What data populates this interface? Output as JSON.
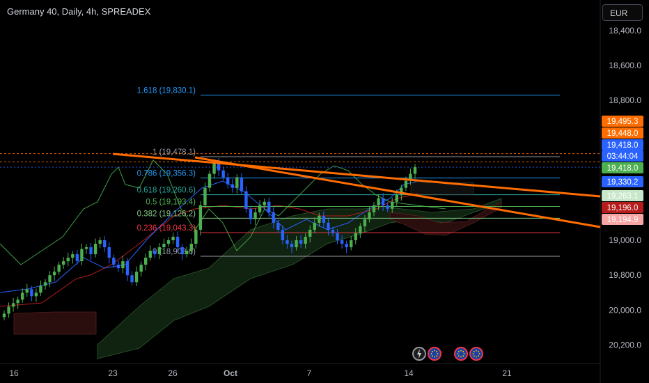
{
  "header": {
    "title": "Germany 40, Daily, 4h, SPREADEX",
    "currency": "EUR"
  },
  "y_ticks": [
    "20,200.0",
    "20,000.0",
    "19,800.0",
    "19,000.0",
    "18,800.0",
    "18,600.0",
    "18,400.0"
  ],
  "x_ticks": [
    "16",
    "23",
    "26",
    "Oct",
    "7",
    "14",
    "21"
  ],
  "fib_levels": [
    {
      "label": "1.618 (19,830.1)",
      "color": "#2196f3"
    },
    {
      "label": "1 (19,478.1)",
      "color": "#9598a1"
    },
    {
      "label": "0.786 (19,356.3)",
      "color": "#2196f3"
    },
    {
      "label": "0.618 (19,260.6)",
      "color": "#26a69a"
    },
    {
      "label": "0.5 (19,193.4)",
      "color": "#4caf50"
    },
    {
      "label": "0.382 (19,126.2)",
      "color": "#81c784"
    },
    {
      "label": "0.236 (19,043.3)",
      "color": "#f23645"
    },
    {
      "label": "0 (18,908.6)",
      "color": "#9598a1"
    }
  ],
  "price_tags": [
    {
      "label": "19,495.3",
      "color": "#ff6d00",
      "text_color": "#ffffff"
    },
    {
      "label": "19,448.0",
      "color": "#ff6d00",
      "text_color": "#ffffff"
    },
    {
      "label": "19,418.0",
      "color": "#2962ff",
      "text_color": "#ffffff"
    },
    {
      "label": "03:44:04",
      "color": "#2962ff",
      "text_color": "#ffffff"
    },
    {
      "label": "19,418.0",
      "color": "#4caf50",
      "text_color": "#ffffff"
    },
    {
      "label": "19,330.2",
      "color": "#2962ff",
      "text_color": "#ffffff"
    },
    {
      "label": "19,263.1",
      "color": "#c8e6c9",
      "text_color": "#000000"
    },
    {
      "label": "19,196.0",
      "color": "#b71c1c",
      "text_color": "#ffffff"
    },
    {
      "label": "19,194.9",
      "color": "#f7a5a5",
      "text_color": "#000000"
    }
  ],
  "colors": {
    "up": "#4caf50",
    "down": "#2962ff",
    "trendline": "#ff6d00",
    "cloud_bull": "#0f2310",
    "cloud_bear": "#2a0d0d",
    "kijun": "#b71c1c",
    "tenkan": "#2962ff",
    "chikou": "#43a047"
  },
  "chart_data": {
    "type": "candlestick",
    "title": "Germany 40, Daily, 4h, SPREADEX",
    "ylim": [
      18330,
      20260
    ],
    "y_ticks": [
      18400,
      18600,
      18800,
      19000,
      19800,
      20000,
      20200
    ],
    "x_tick_labels": [
      "16",
      "23",
      "26",
      "Oct",
      "7",
      "14",
      "21"
    ],
    "fibonacci": [
      {
        "ratio": 1.618,
        "price": 19830.1
      },
      {
        "ratio": 1,
        "price": 19478.1
      },
      {
        "ratio": 0.786,
        "price": 19356.3
      },
      {
        "ratio": 0.618,
        "price": 19260.6
      },
      {
        "ratio": 0.5,
        "price": 19193.4
      },
      {
        "ratio": 0.382,
        "price": 19126.2
      },
      {
        "ratio": 0.236,
        "price": 19043.3
      },
      {
        "ratio": 0,
        "price": 18908.6
      }
    ],
    "price_labels": [
      19495.3,
      19448.0,
      19418.0,
      19418.0,
      19330.2,
      19263.1,
      19196.0,
      19194.9
    ],
    "countdown": "03:44:04",
    "close_approx": [
      18580,
      18620,
      18640,
      18660,
      18700,
      18720,
      18680,
      18700,
      18740,
      18760,
      18800,
      18820,
      18860,
      18880,
      18900,
      18920,
      18880,
      18950,
      18960,
      18920,
      18980,
      19000,
      18960,
      18900,
      18860,
      18840,
      18880,
      18800,
      18760,
      18820,
      18860,
      18900,
      18940,
      18920,
      18960,
      18980,
      19000,
      19020,
      18960,
      18920,
      18940,
      18980,
      19060,
      19200,
      19300,
      19380,
      19440,
      19400,
      19360,
      19320,
      19300,
      19360,
      19280,
      19180,
      19120,
      19160,
      19200,
      19220,
      19160,
      19100,
      19060,
      19000,
      18980,
      18960,
      19000,
      18980,
      19020,
      19060,
      19100,
      19140,
      19100,
      19060,
      19040,
      19000,
      18980,
      18960,
      19000,
      19040,
      19080,
      19120,
      19160,
      19200,
      19240,
      19200,
      19180,
      19220,
      19260,
      19300,
      19340,
      19380,
      19418
    ]
  }
}
